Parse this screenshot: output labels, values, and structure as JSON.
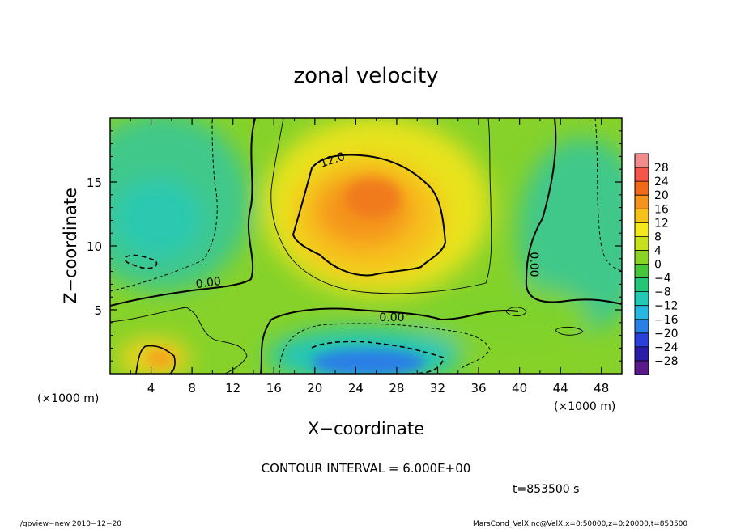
{
  "chart_data": {
    "type": "heatmap",
    "title": "zonal velocity",
    "xlabel": "X−coordinate",
    "ylabel": "Z−coordinate",
    "x_unit": "(×1000 m)",
    "y_unit": "(×1000 m)",
    "xlim": [
      0,
      50
    ],
    "ylim": [
      0,
      20
    ],
    "x_ticks": [
      4,
      8,
      12,
      16,
      20,
      24,
      28,
      32,
      36,
      40,
      44,
      48
    ],
    "y_ticks": [
      5,
      10,
      15
    ],
    "colorbar_levels": [
      "28",
      "24",
      "20",
      "16",
      "12",
      "8",
      "4",
      "0",
      "−4",
      "−8",
      "−12",
      "−16",
      "−20",
      "−24",
      "−28"
    ],
    "colorbar_colors": [
      "#f28c8c",
      "#f4564a",
      "#f06a1a",
      "#f5941c",
      "#f6c21a",
      "#f3e81c",
      "#c6e01e",
      "#8ad424",
      "#44c83a",
      "#22c676",
      "#22c9b4",
      "#27b8e2",
      "#2a7fe6",
      "#2a40d8",
      "#2a1ea8",
      "#5a1a8c"
    ],
    "contour_labels": [
      {
        "value": "12.0",
        "x": 24.5,
        "z": 16.3
      },
      {
        "value": "0.00",
        "x": 9.5,
        "z": 7.3
      },
      {
        "value": "0.00",
        "x": 27.5,
        "z": 4.3
      },
      {
        "value": "0.00",
        "x": 41.5,
        "z": 8.8
      }
    ],
    "contour_interval_text": "CONTOUR INTERVAL = 6.000E+00",
    "time_label": "t=853500 s"
  },
  "footer": {
    "left": "./gpview−new  2010−12−20",
    "right": "MarsCond_VelX.nc@VelX,x=0:50000,z=0:20000,t=853500"
  }
}
